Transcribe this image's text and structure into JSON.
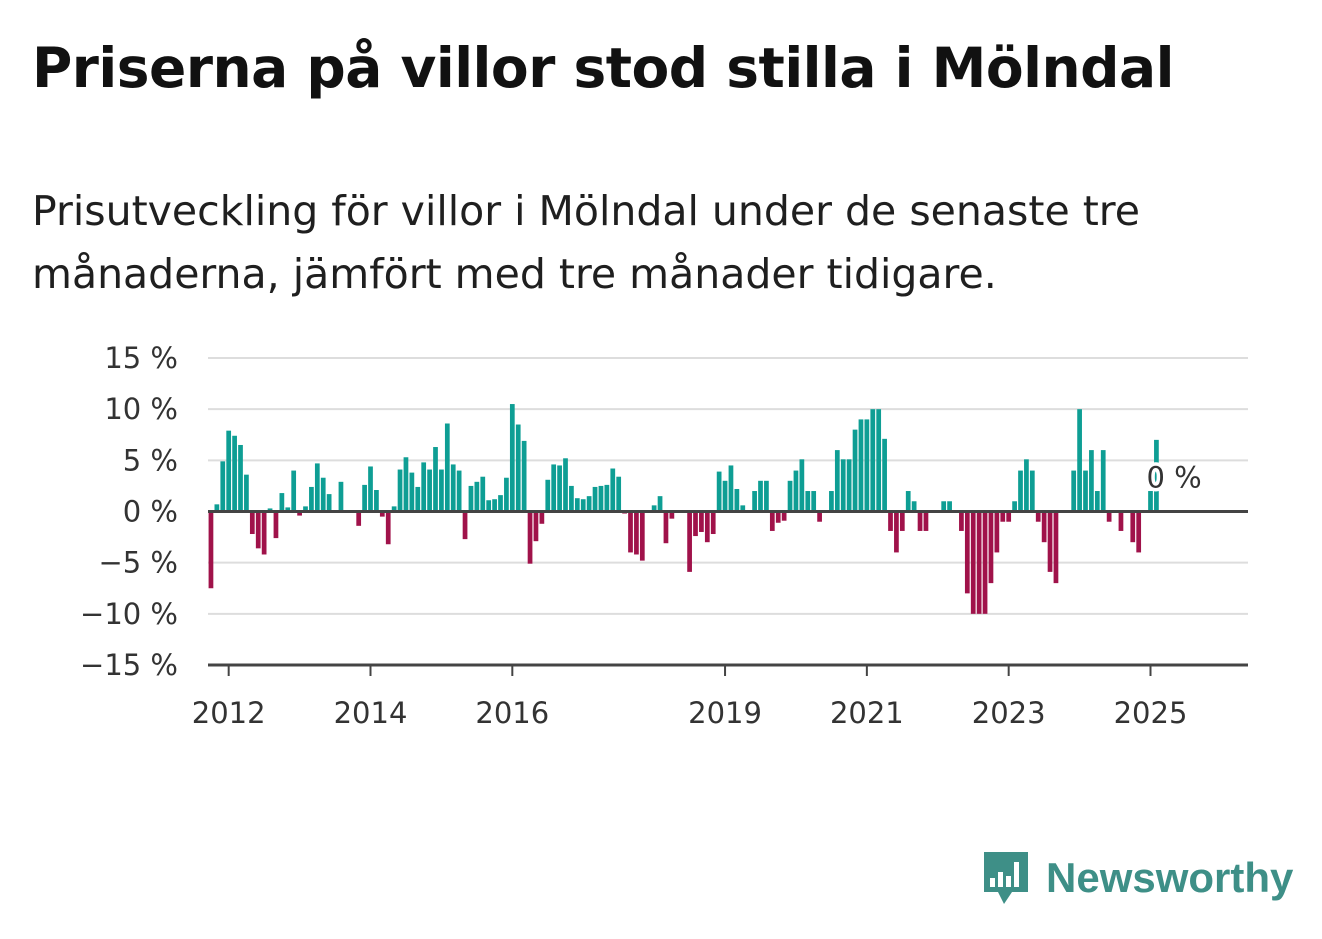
{
  "title": "Priserna på villor stod stilla i Mölndal",
  "subtitle": "Prisutveckling för villor i Mölndal under de senaste tre månaderna, jämfört med tre månader tidigare.",
  "brand": {
    "name": "Newsworthy",
    "icon": "newsworthy-logo-icon"
  },
  "colors": {
    "positive": "#0e9e94",
    "negative": "#a0124a",
    "grid": "#dddddd",
    "axis": "#444444",
    "brand": "#3e8f87"
  },
  "chart_data": {
    "type": "bar",
    "title": "",
    "xlabel": "",
    "ylabel": "",
    "ylim": [
      -15,
      15
    ],
    "y_ticks": [
      {
        "value": 15,
        "label": "15 %"
      },
      {
        "value": 10,
        "label": "10 %"
      },
      {
        "value": 5,
        "label": "5 %"
      },
      {
        "value": 0,
        "label": "0 %"
      },
      {
        "value": -5,
        "label": "−5 %"
      },
      {
        "value": -10,
        "label": "−10 %"
      },
      {
        "value": -15,
        "label": "−15 %"
      }
    ],
    "x_start": "2011-10",
    "x_ticks": [
      {
        "month": "2012-01",
        "label": "2012"
      },
      {
        "month": "2014-01",
        "label": "2014"
      },
      {
        "month": "2016-01",
        "label": "2016"
      },
      {
        "month": "2019-01",
        "label": "2019"
      },
      {
        "month": "2021-01",
        "label": "2021"
      },
      {
        "month": "2023-01",
        "label": "2023"
      },
      {
        "month": "2025-01",
        "label": "2025"
      }
    ],
    "x_end": "2026-06",
    "grid": true,
    "annotation": {
      "month": "2025-05",
      "value": 0,
      "label": "0 %"
    },
    "series": [
      {
        "values": [
          -7.5,
          0.7,
          4.9,
          7.9,
          7.4,
          6.5,
          3.6,
          -2.2,
          -3.6,
          -4.2,
          0.3,
          -2.6,
          1.8,
          0.4,
          4.0,
          -0.4,
          0.5,
          2.4,
          4.7,
          3.3,
          1.7,
          0,
          2.9,
          0,
          0,
          -1.4,
          2.6,
          4.4,
          2.1,
          -0.5,
          -3.2,
          0.5,
          4.1,
          5.3,
          3.8,
          2.4,
          4.8,
          4.1,
          6.3,
          4.1,
          8.6,
          4.6,
          4.0,
          -2.7,
          2.5,
          2.9,
          3.4,
          1.1,
          1.2,
          1.6,
          3.3,
          10.5,
          8.5,
          6.9,
          -5.1,
          -2.9,
          -1.2,
          3.1,
          4.6,
          4.5,
          5.2,
          2.5,
          1.3,
          1.2,
          1.5,
          2.4,
          2.5,
          2.6,
          4.2,
          3.4,
          -0.2,
          -4.0,
          -4.2,
          -4.8,
          0,
          0.6,
          1.5,
          -3.1,
          -0.7,
          0,
          0,
          -5.9,
          -2.4,
          -2.0,
          -3.0,
          -2.2,
          3.9,
          3.0,
          4.5,
          2.2,
          0.6,
          0,
          2.0,
          3.0,
          3.0,
          -1.9,
          -1.1,
          -0.9,
          3.0,
          4.0,
          5.1,
          2.0,
          2.0,
          -1.0,
          0,
          2.0,
          6.0,
          5.1,
          5.1,
          8.0,
          9.0,
          9.0,
          10.0,
          10.0,
          7.1,
          -1.9,
          -4.0,
          -1.9,
          2.0,
          1.0,
          -1.9,
          -1.9,
          0,
          0,
          1.0,
          1.0,
          0,
          -1.9,
          -8.0,
          -10.0,
          -10.0,
          -10.0,
          -7.0,
          -4.0,
          -1.0,
          -1.0,
          1.0,
          4.0,
          5.1,
          4.0,
          -1.0,
          -3.0,
          -5.9,
          -7.0,
          0,
          0,
          4.0,
          10.0,
          4.0,
          6.0,
          2.0,
          6.0,
          -1.0,
          0,
          -1.9,
          0,
          -3.0,
          -4.0,
          0,
          2.0,
          7.0,
          0
        ]
      }
    ]
  }
}
